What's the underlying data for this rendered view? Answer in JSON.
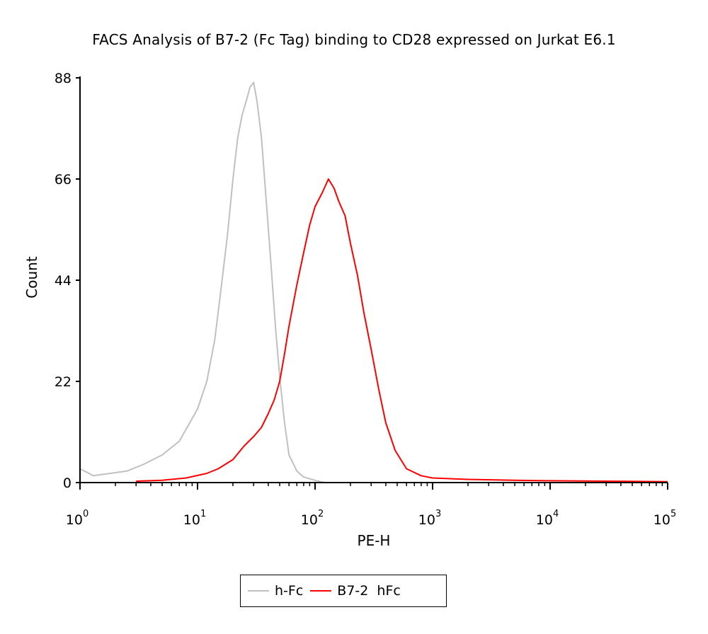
{
  "chart_data": {
    "type": "line",
    "title": "FACS Analysis of  B7-2 (Fc Tag) binding to CD28 expressed on Jurkat E6.1",
    "xlabel": "PE-H",
    "ylabel": "Count",
    "x_scale": "log",
    "xlim": [
      1,
      100000
    ],
    "ylim": [
      0,
      88
    ],
    "x_ticks": [
      {
        "base": "10",
        "exp": "0"
      },
      {
        "base": "10",
        "exp": "1"
      },
      {
        "base": "10",
        "exp": "2"
      },
      {
        "base": "10",
        "exp": "3"
      },
      {
        "base": "10",
        "exp": "4"
      },
      {
        "base": "10",
        "exp": "5"
      }
    ],
    "y_ticks": [
      "0",
      "22",
      "44",
      "66",
      "88"
    ],
    "y_tick_values": [
      0,
      22,
      44,
      66,
      88
    ],
    "legend_position": "bottom",
    "series": [
      {
        "name": "h-Fc",
        "color": "#c0c0c0",
        "x": [
          1,
          1.3,
          1.8,
          2.5,
          3.5,
          5,
          7,
          10,
          12,
          14,
          16,
          18,
          20,
          22,
          24,
          26,
          28,
          30,
          32,
          35,
          38,
          42,
          46,
          50,
          55,
          60,
          70,
          80,
          100,
          120
        ],
        "y": [
          3,
          1.5,
          2,
          2.5,
          4,
          6,
          9,
          16,
          22,
          31,
          43,
          54,
          66,
          75,
          80,
          83,
          86,
          87,
          83,
          75,
          63,
          48,
          34,
          23,
          13,
          6,
          2.5,
          1.2,
          0.5,
          0
        ]
      },
      {
        "name": "B7-2  hFc",
        "color": "#ff0000",
        "x": [
          3,
          5,
          8,
          12,
          15,
          20,
          25,
          30,
          35,
          40,
          45,
          50,
          55,
          60,
          70,
          80,
          90,
          100,
          115,
          130,
          145,
          160,
          180,
          200,
          230,
          260,
          300,
          350,
          400,
          480,
          600,
          800,
          1000,
          2000,
          5000,
          10000,
          30000,
          100000
        ],
        "y": [
          0.3,
          0.5,
          1,
          2,
          3,
          5,
          8,
          10,
          12,
          15,
          18,
          22,
          28,
          34,
          43,
          50,
          56,
          60,
          63,
          66,
          64,
          61,
          58,
          52,
          45,
          37,
          29,
          20,
          13,
          7,
          3,
          1.5,
          1,
          0.7,
          0.5,
          0.4,
          0.3,
          0.2
        ]
      }
    ]
  }
}
